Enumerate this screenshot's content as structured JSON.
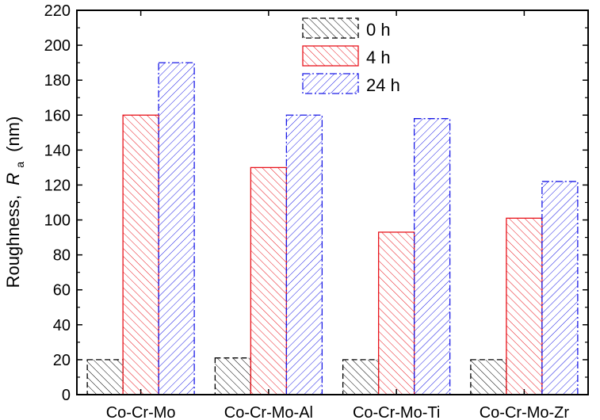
{
  "chart_data": {
    "type": "bar",
    "title": "",
    "xlabel": "",
    "ylabel": "Roughness,",
    "ylabel_symbol": "R",
    "ylabel_subscript": "a",
    "ylabel_unit": "(nm)",
    "ylim": [
      0,
      220
    ],
    "yticks": [
      0,
      20,
      40,
      60,
      80,
      100,
      120,
      140,
      160,
      180,
      200,
      220
    ],
    "categories": [
      "Co-Cr-Mo",
      "Co-Cr-Mo-Al",
      "Co-Cr-Mo-Ti",
      "Co-Cr-Mo-Zr"
    ],
    "series": [
      {
        "name": "0 h",
        "color": "#000000",
        "dash": "dash",
        "hatch": "diagonal",
        "values": [
          20,
          21,
          20,
          20
        ]
      },
      {
        "name": "4 h",
        "color": "#e8141c",
        "dash": "solid",
        "hatch": "diagonal",
        "values": [
          160,
          130,
          93,
          101
        ]
      },
      {
        "name": "24 h",
        "color": "#1a1ae6",
        "dash": "dashdot",
        "hatch": "diagonal",
        "values": [
          190,
          160,
          158,
          122
        ]
      }
    ],
    "legend_position": "top-center"
  }
}
